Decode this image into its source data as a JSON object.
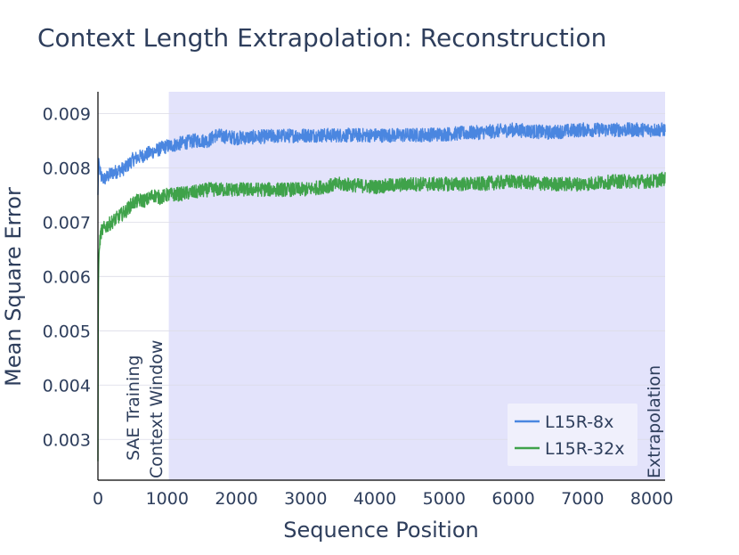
{
  "chart_data": {
    "type": "line",
    "title": "Context Length Extrapolation: Reconstruction",
    "xlabel": "Sequence Position",
    "ylabel": "Mean Square Error",
    "xlim": [
      0,
      8192
    ],
    "ylim": [
      0.00225,
      0.0094
    ],
    "x_ticks": [
      0,
      1000,
      2000,
      3000,
      4000,
      5000,
      6000,
      7000,
      8000
    ],
    "y_ticks": [
      0.003,
      0.004,
      0.005,
      0.006,
      0.007,
      0.008,
      0.009
    ],
    "y_tick_labels": [
      "0.003",
      "0.004",
      "0.005",
      "0.006",
      "0.007",
      "0.008",
      "0.009"
    ],
    "grid": "horizontal",
    "shaded_region": {
      "x_start": 1024,
      "x_end": 8192,
      "color": "#e3e3fb"
    },
    "annotations": [
      {
        "lines": [
          "SAE Training",
          "Context Window"
        ],
        "x": 1024,
        "rotation": -90
      },
      {
        "lines": [
          "Extrapolation"
        ],
        "x": 8192,
        "rotation": -90
      }
    ],
    "legend": {
      "position": "lower-right"
    },
    "series": [
      {
        "name": "L15R-8x",
        "color": "#4a86e0",
        "noise": 0.00013,
        "x": [
          0,
          10,
          30,
          60,
          100,
          150,
          200,
          300,
          400,
          500,
          600,
          700,
          800,
          900,
          1000,
          1024,
          1200,
          1400,
          1600,
          1700,
          2000,
          2500,
          3000,
          3500,
          4000,
          4500,
          5000,
          5500,
          6000,
          6500,
          7000,
          7500,
          8000,
          8192
        ],
        "y": [
          0.0075,
          0.0082,
          0.0079,
          0.0078,
          0.0078,
          0.00785,
          0.0079,
          0.00795,
          0.008,
          0.00815,
          0.0082,
          0.00825,
          0.0083,
          0.00835,
          0.0084,
          0.0084,
          0.00845,
          0.0085,
          0.0085,
          0.0086,
          0.00855,
          0.00858,
          0.0086,
          0.0086,
          0.0086,
          0.0086,
          0.00862,
          0.00865,
          0.0087,
          0.00865,
          0.0087,
          0.0087,
          0.0087,
          0.0087
        ]
      },
      {
        "name": "L15R-32x",
        "color": "#3fa24a",
        "noise": 0.00013,
        "x": [
          0,
          3,
          6,
          10,
          15,
          25,
          40,
          60,
          100,
          150,
          200,
          300,
          400,
          500,
          600,
          700,
          800,
          900,
          1000,
          1024,
          1200,
          1400,
          1600,
          2000,
          2500,
          3000,
          3500,
          4000,
          4500,
          5000,
          5500,
          6000,
          6500,
          7000,
          7500,
          8000,
          8192
        ],
        "y": [
          0.0026,
          0.0048,
          0.0057,
          0.0061,
          0.0064,
          0.0066,
          0.0068,
          0.00685,
          0.0069,
          0.00695,
          0.007,
          0.0071,
          0.0072,
          0.00735,
          0.0074,
          0.0074,
          0.0075,
          0.00745,
          0.0075,
          0.0075,
          0.00752,
          0.00755,
          0.0076,
          0.0076,
          0.0076,
          0.0076,
          0.0077,
          0.00765,
          0.0077,
          0.0077,
          0.0077,
          0.00775,
          0.0077,
          0.0077,
          0.00775,
          0.00775,
          0.0078
        ]
      }
    ]
  }
}
